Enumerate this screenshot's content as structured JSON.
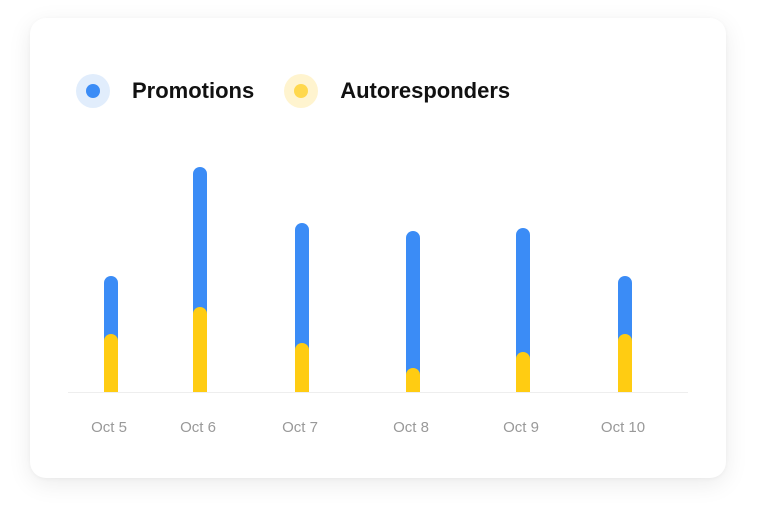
{
  "chart_data": {
    "type": "bar",
    "stacked": true,
    "categories": [
      "Oct 5",
      "Oct 6",
      "Oct 7",
      "Oct 8",
      "Oct 9",
      "Oct 10"
    ],
    "series": [
      {
        "name": "Promotions",
        "color": "#3B8CF6",
        "values": [
          58,
          140,
          120,
          137,
          124,
          58
        ]
      },
      {
        "name": "Autoresponders",
        "color": "#FFCC12",
        "values": [
          58,
          85,
          49,
          24,
          40,
          58
        ]
      }
    ],
    "legend_placement": "top-left",
    "grid": false,
    "ylim": [
      0,
      230
    ]
  }
}
